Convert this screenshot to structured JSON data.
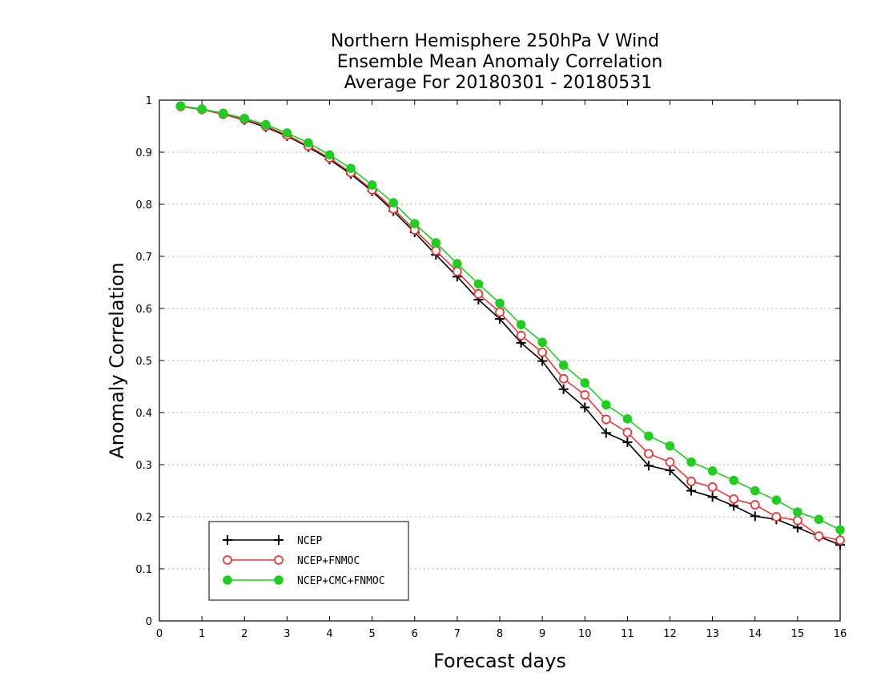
{
  "chart_data": {
    "type": "line",
    "title_lines": [
      "Northern Hemisphere 250hPa V Wind",
      "Ensemble Mean Anomaly Correlation",
      "Average For 20180301 - 20180531"
    ],
    "xlabel": "Forecast days",
    "ylabel": "Anomaly Correlation",
    "xlim": [
      0,
      16
    ],
    "ylim": [
      0,
      1
    ],
    "xticks": [
      "0",
      "1",
      "2",
      "3",
      "4",
      "5",
      "6",
      "7",
      "8",
      "9",
      "10",
      "11",
      "12",
      "13",
      "14",
      "15",
      "16"
    ],
    "yticks": [
      "0",
      "0.1",
      "0.2",
      "0.3",
      "0.4",
      "0.5",
      "0.6",
      "0.7",
      "0.8",
      "0.9",
      "1"
    ],
    "grid": "horizontal dotted",
    "legend_position": "bottom-left",
    "x": [
      0.5,
      1,
      1.5,
      2,
      2.5,
      3,
      3.5,
      4,
      4.5,
      5,
      5.5,
      6,
      6.5,
      7,
      7.5,
      8,
      8.5,
      9,
      9.5,
      10,
      10.5,
      11,
      11.5,
      12,
      12.5,
      13,
      13.5,
      14,
      14.5,
      15,
      15.5,
      16
    ],
    "series": [
      {
        "name": "NCEP",
        "color": "#000000",
        "marker": "plus",
        "values": [
          0.988,
          0.982,
          0.973,
          0.962,
          0.948,
          0.931,
          0.91,
          0.886,
          0.858,
          0.825,
          0.787,
          0.746,
          0.703,
          0.661,
          0.617,
          0.58,
          0.534,
          0.499,
          0.445,
          0.41,
          0.361,
          0.343,
          0.298,
          0.289,
          0.25,
          0.238,
          0.221,
          0.201,
          0.195,
          0.179,
          0.162,
          0.146
        ]
      },
      {
        "name": "NCEP+FNMOC",
        "color": "#e03a3a",
        "marker": "open-circle",
        "values": [
          0.988,
          0.982,
          0.973,
          0.963,
          0.95,
          0.933,
          0.912,
          0.889,
          0.861,
          0.828,
          0.791,
          0.751,
          0.711,
          0.671,
          0.628,
          0.593,
          0.548,
          0.516,
          0.465,
          0.434,
          0.387,
          0.362,
          0.321,
          0.305,
          0.268,
          0.257,
          0.234,
          0.223,
          0.2,
          0.193,
          0.163,
          0.155
        ]
      },
      {
        "name": "NCEP+CMC+FNMOC",
        "color": "#22cc22",
        "marker": "filled-circle",
        "values": [
          0.989,
          0.983,
          0.975,
          0.965,
          0.953,
          0.937,
          0.918,
          0.895,
          0.869,
          0.837,
          0.803,
          0.763,
          0.726,
          0.686,
          0.647,
          0.61,
          0.569,
          0.535,
          0.491,
          0.457,
          0.415,
          0.388,
          0.355,
          0.336,
          0.305,
          0.288,
          0.27,
          0.25,
          0.232,
          0.209,
          0.195,
          0.175
        ]
      }
    ]
  }
}
